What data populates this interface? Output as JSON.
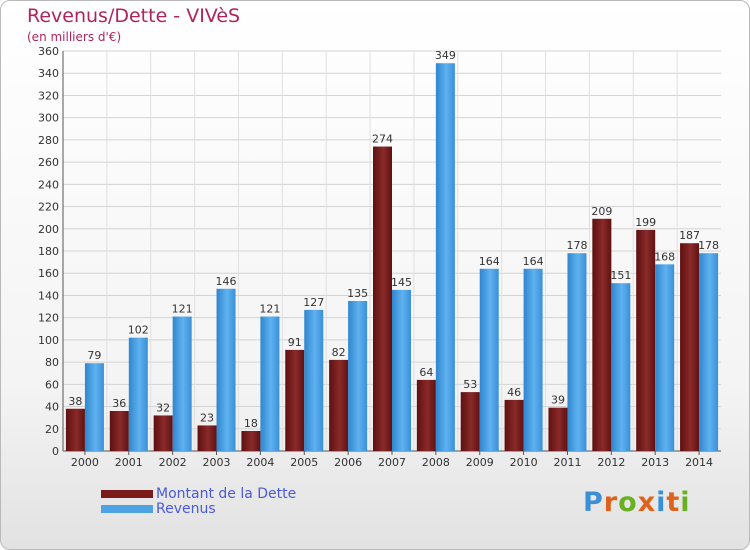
{
  "header": {
    "title": "Revenus/Dette - VIVèS",
    "subtitle": "(en milliers d'€)"
  },
  "legend": {
    "items": [
      {
        "label": "Montant de la Dette",
        "color": "#7a1c1c"
      },
      {
        "label": "Revenus",
        "color": "#4da3e3"
      }
    ]
  },
  "logo": {
    "letters": [
      "P",
      "r",
      "o",
      "x",
      "i",
      "t",
      "i"
    ],
    "colors": [
      "#3a8fd6",
      "#e0621a",
      "#6ab023",
      "#e0621a",
      "#3a8fd6",
      "#e0621a",
      "#6ab023"
    ]
  },
  "chart_data": {
    "type": "bar",
    "categories": [
      "2000",
      "2001",
      "2002",
      "2003",
      "2004",
      "2005",
      "2006",
      "2007",
      "2008",
      "2009",
      "2010",
      "2011",
      "2012",
      "2013",
      "2014"
    ],
    "series": [
      {
        "name": "Montant de la Dette",
        "color": "#7a1c1c",
        "values": [
          38,
          36,
          32,
          23,
          18,
          91,
          82,
          274,
          64,
          53,
          46,
          39,
          209,
          199,
          187
        ]
      },
      {
        "name": "Revenus",
        "color": "#4da3e3",
        "values": [
          79,
          102,
          121,
          146,
          121,
          127,
          135,
          145,
          349,
          164,
          164,
          178,
          151,
          168,
          178
        ]
      }
    ],
    "ylim": [
      0,
      360
    ],
    "ytick_step": 20,
    "grid": true,
    "legend_position": "bottom-left"
  }
}
